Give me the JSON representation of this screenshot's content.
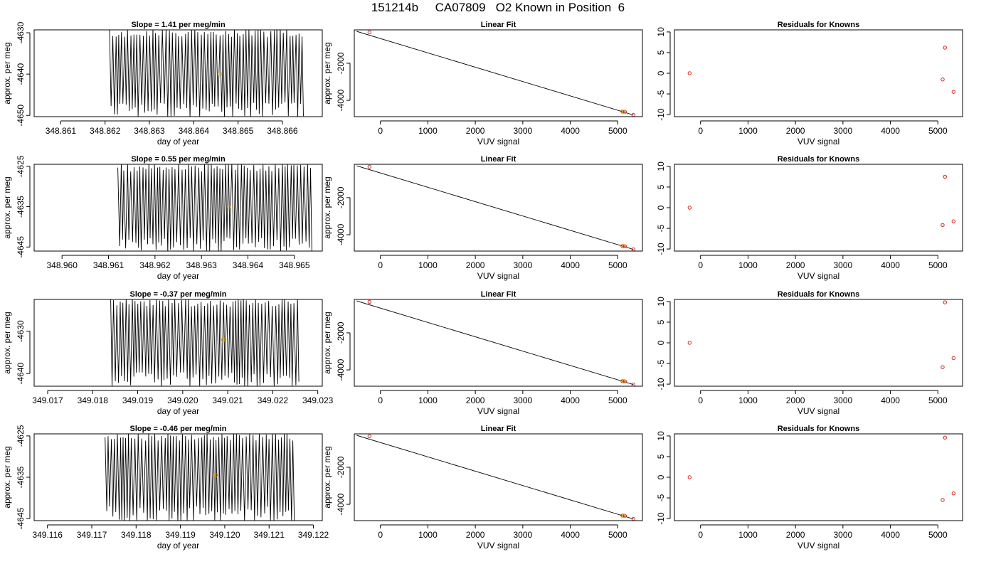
{
  "title": "151214b     CA07809   O2 Known in Position  6",
  "colors": {
    "trace": "#000000",
    "point_red": "#d62020",
    "point_orange": "#e8a000",
    "axis": "#000000"
  },
  "chart_data": [
    {
      "type": "line",
      "title": "Slope =  1.41  per meg/min",
      "xlabel": "day of year",
      "ylabel": "approx. per meg",
      "xlim": [
        348.8604,
        348.8669
      ],
      "ylim": [
        -4650.3,
        -4629.3
      ],
      "xticks": [
        348.861,
        348.862,
        348.863,
        348.864,
        348.865,
        348.866
      ],
      "xticklabels": [
        "348.861",
        "348.862",
        "348.863",
        "348.864",
        "348.865",
        "348.866"
      ],
      "yticks": [
        -4630,
        -4640,
        -4650
      ],
      "yticklabels": [
        "-4630",
        "-4640",
        "-4650"
      ],
      "trace_x_start": 348.8621,
      "trace_x_end": 348.8665,
      "trace_y_range": [
        -4650.3,
        -4629.3
      ],
      "marker": {
        "x": 348.8646,
        "y": -4640
      }
    },
    {
      "type": "scatter",
      "title": "Linear Fit",
      "xlabel": "VUV signal",
      "ylabel": "approx. per meg",
      "xlim": [
        -550,
        5520
      ],
      "ylim": [
        -4880,
        -200
      ],
      "xticks": [
        0,
        1000,
        2000,
        3000,
        4000,
        5000
      ],
      "xticklabels": [
        "0",
        "1000",
        "2000",
        "3000",
        "4000",
        "5000"
      ],
      "yticks": [
        -2000,
        -4000
      ],
      "yticklabels": [
        "-2000",
        "-4000"
      ],
      "points": [
        {
          "x": -230,
          "y": -330
        },
        {
          "x": 5100,
          "y": -4610
        },
        {
          "x": 5150,
          "y": -4620
        },
        {
          "x": 5330,
          "y": -4790
        }
      ],
      "fit": {
        "x": [
          -500,
          5330
        ],
        "y": [
          -280,
          -4790
        ]
      },
      "marker": {
        "x": 5130,
        "y": -4615
      }
    },
    {
      "type": "scatter",
      "title": "Residuals for Knowns",
      "xlabel": "VUV signal",
      "ylabel": "",
      "xlim": [
        -550,
        5520
      ],
      "ylim": [
        -10.5,
        10.5
      ],
      "xticks": [
        0,
        1000,
        2000,
        3000,
        4000,
        5000
      ],
      "xticklabels": [
        "0",
        "1000",
        "2000",
        "3000",
        "4000",
        "5000"
      ],
      "yticks": [
        10,
        5,
        0,
        -5,
        -10
      ],
      "yticklabels": [
        "10",
        "5",
        "0",
        "-5",
        "-10"
      ],
      "points": [
        {
          "x": -230,
          "y": 0
        },
        {
          "x": 5100,
          "y": -1.5
        },
        {
          "x": 5150,
          "y": 6.2
        },
        {
          "x": 5330,
          "y": -4.5
        }
      ]
    },
    {
      "type": "line",
      "title": "Slope =  0.55  per meg/min",
      "xlabel": "day of year",
      "ylabel": "approx. per meg",
      "xlim": [
        348.9594,
        348.9656
      ],
      "ylim": [
        -4646,
        -4624.5
      ],
      "xticks": [
        348.96,
        348.961,
        348.962,
        348.963,
        348.964,
        348.965
      ],
      "xticklabels": [
        "348.960",
        "348.961",
        "348.962",
        "348.963",
        "348.964",
        "348.965"
      ],
      "yticks": [
        -4625,
        -4635,
        -4645
      ],
      "yticklabels": [
        "-4625",
        "-4635",
        "-4645"
      ],
      "trace_x_start": 348.9612,
      "trace_x_end": 348.9654,
      "trace_y_range": [
        -4646,
        -4624.5
      ],
      "marker": {
        "x": 348.9636,
        "y": -4635
      }
    },
    {
      "type": "scatter",
      "title": "Linear Fit",
      "xlabel": "VUV signal",
      "ylabel": "approx. per meg",
      "xlim": [
        -550,
        5520
      ],
      "ylim": [
        -4880,
        -200
      ],
      "xticks": [
        0,
        1000,
        2000,
        3000,
        4000,
        5000
      ],
      "xticklabels": [
        "0",
        "1000",
        "2000",
        "3000",
        "4000",
        "5000"
      ],
      "yticks": [
        -2000,
        -4000
      ],
      "yticklabels": [
        "-2000",
        "-4000"
      ],
      "points": [
        {
          "x": -230,
          "y": -330
        },
        {
          "x": 5100,
          "y": -4610
        },
        {
          "x": 5150,
          "y": -4620
        },
        {
          "x": 5330,
          "y": -4790
        }
      ],
      "fit": {
        "x": [
          -500,
          5330
        ],
        "y": [
          -280,
          -4790
        ]
      },
      "marker": {
        "x": 5130,
        "y": -4615
      }
    },
    {
      "type": "scatter",
      "title": "Residuals for Knowns",
      "xlabel": "VUV signal",
      "ylabel": "",
      "xlim": [
        -550,
        5520
      ],
      "ylim": [
        -10.5,
        10.5
      ],
      "xticks": [
        0,
        1000,
        2000,
        3000,
        4000,
        5000
      ],
      "xticklabels": [
        "0",
        "1000",
        "2000",
        "3000",
        "4000",
        "5000"
      ],
      "yticks": [
        10,
        5,
        0,
        -5,
        -10
      ],
      "yticklabels": [
        "10",
        "5",
        "0",
        "-5",
        "-10"
      ],
      "points": [
        {
          "x": -230,
          "y": 0
        },
        {
          "x": 5100,
          "y": -4.2
        },
        {
          "x": 5150,
          "y": 7.5
        },
        {
          "x": 5330,
          "y": -3.3
        }
      ]
    },
    {
      "type": "line",
      "title": "Slope =  -0.37  per meg/min",
      "xlabel": "day of year",
      "ylabel": "approx. per meg",
      "xlim": [
        349.0167,
        349.0231
      ],
      "ylim": [
        -4643,
        -4622.5
      ],
      "xticks": [
        349.017,
        349.018,
        349.019,
        349.02,
        349.021,
        349.022,
        349.023
      ],
      "xticklabels": [
        "349.017",
        "349.018",
        "349.019",
        "349.020",
        "349.021",
        "349.022",
        "349.023"
      ],
      "yticks": [
        -4630,
        -4640
      ],
      "yticklabels": [
        "-4630",
        "-4640"
      ],
      "trace_x_start": 349.0184,
      "trace_x_end": 349.0226,
      "trace_y_range": [
        -4643,
        -4622.5
      ],
      "marker": {
        "x": 349.0209,
        "y": -4632
      }
    },
    {
      "type": "scatter",
      "title": "Linear Fit",
      "xlabel": "VUV signal",
      "ylabel": "approx. per meg",
      "xlim": [
        -550,
        5520
      ],
      "ylim": [
        -4880,
        -200
      ],
      "xticks": [
        0,
        1000,
        2000,
        3000,
        4000,
        5000
      ],
      "xticklabels": [
        "0",
        "1000",
        "2000",
        "3000",
        "4000",
        "5000"
      ],
      "yticks": [
        -2000,
        -4000
      ],
      "yticklabels": [
        "-2000",
        "-4000"
      ],
      "points": [
        {
          "x": -230,
          "y": -330
        },
        {
          "x": 5100,
          "y": -4610
        },
        {
          "x": 5150,
          "y": -4620
        },
        {
          "x": 5330,
          "y": -4790
        }
      ],
      "fit": {
        "x": [
          -500,
          5330
        ],
        "y": [
          -280,
          -4790
        ]
      },
      "marker": {
        "x": 5130,
        "y": -4615
      }
    },
    {
      "type": "scatter",
      "title": "Residuals for Knowns",
      "xlabel": "VUV signal",
      "ylabel": "",
      "xlim": [
        -550,
        5520
      ],
      "ylim": [
        -10.5,
        10.5
      ],
      "xticks": [
        0,
        1000,
        2000,
        3000,
        4000,
        5000
      ],
      "xticklabels": [
        "0",
        "1000",
        "2000",
        "3000",
        "4000",
        "5000"
      ],
      "yticks": [
        10,
        5,
        0,
        -5,
        -10
      ],
      "yticklabels": [
        "10",
        "5",
        "0",
        "-5",
        "-10"
      ],
      "points": [
        {
          "x": -230,
          "y": 0
        },
        {
          "x": 5100,
          "y": -5.9
        },
        {
          "x": 5150,
          "y": 9.8
        },
        {
          "x": 5330,
          "y": -3.7
        }
      ]
    },
    {
      "type": "line",
      "title": "Slope =  -0.46  per meg/min",
      "xlabel": "day of year",
      "ylabel": "approx. per meg",
      "xlim": [
        349.1157,
        349.1222
      ],
      "ylim": [
        -4645.5,
        -4624.5
      ],
      "xticks": [
        349.116,
        349.117,
        349.118,
        349.119,
        349.12,
        349.121,
        349.122
      ],
      "xticklabels": [
        "349.116",
        "349.117",
        "349.118",
        "349.119",
        "349.120",
        "349.121",
        "349.122"
      ],
      "yticks": [
        -4625,
        -4635,
        -4645
      ],
      "yticklabels": [
        "-4625",
        "-4635",
        "-4645"
      ],
      "trace_x_start": 349.1173,
      "trace_x_end": 349.1216,
      "trace_y_range": [
        -4645.5,
        -4624.5
      ],
      "marker": {
        "x": 349.1198,
        "y": -4634.5
      }
    },
    {
      "type": "scatter",
      "title": "Linear Fit",
      "xlabel": "VUV signal",
      "ylabel": "approx. per meg",
      "xlim": [
        -550,
        5520
      ],
      "ylim": [
        -4880,
        -200
      ],
      "xticks": [
        0,
        1000,
        2000,
        3000,
        4000,
        5000
      ],
      "xticklabels": [
        "0",
        "1000",
        "2000",
        "3000",
        "4000",
        "5000"
      ],
      "yticks": [
        -2000,
        -4000
      ],
      "yticklabels": [
        "-2000",
        "-4000"
      ],
      "points": [
        {
          "x": -230,
          "y": -330
        },
        {
          "x": 5100,
          "y": -4610
        },
        {
          "x": 5150,
          "y": -4620
        },
        {
          "x": 5330,
          "y": -4790
        }
      ],
      "fit": {
        "x": [
          -500,
          5330
        ],
        "y": [
          -280,
          -4790
        ]
      },
      "marker": {
        "x": 5130,
        "y": -4615
      }
    },
    {
      "type": "scatter",
      "title": "Residuals for Knowns",
      "xlabel": "VUV signal",
      "ylabel": "",
      "xlim": [
        -550,
        5520
      ],
      "ylim": [
        -10.5,
        10.5
      ],
      "xticks": [
        0,
        1000,
        2000,
        3000,
        4000,
        5000
      ],
      "xticklabels": [
        "0",
        "1000",
        "2000",
        "3000",
        "4000",
        "5000"
      ],
      "yticks": [
        10,
        5,
        0,
        -5,
        -10
      ],
      "yticklabels": [
        "10",
        "5",
        "0",
        "-5",
        "-10"
      ],
      "points": [
        {
          "x": -230,
          "y": 0
        },
        {
          "x": 5100,
          "y": -5.5
        },
        {
          "x": 5150,
          "y": 9.6
        },
        {
          "x": 5330,
          "y": -3.9
        }
      ]
    }
  ]
}
